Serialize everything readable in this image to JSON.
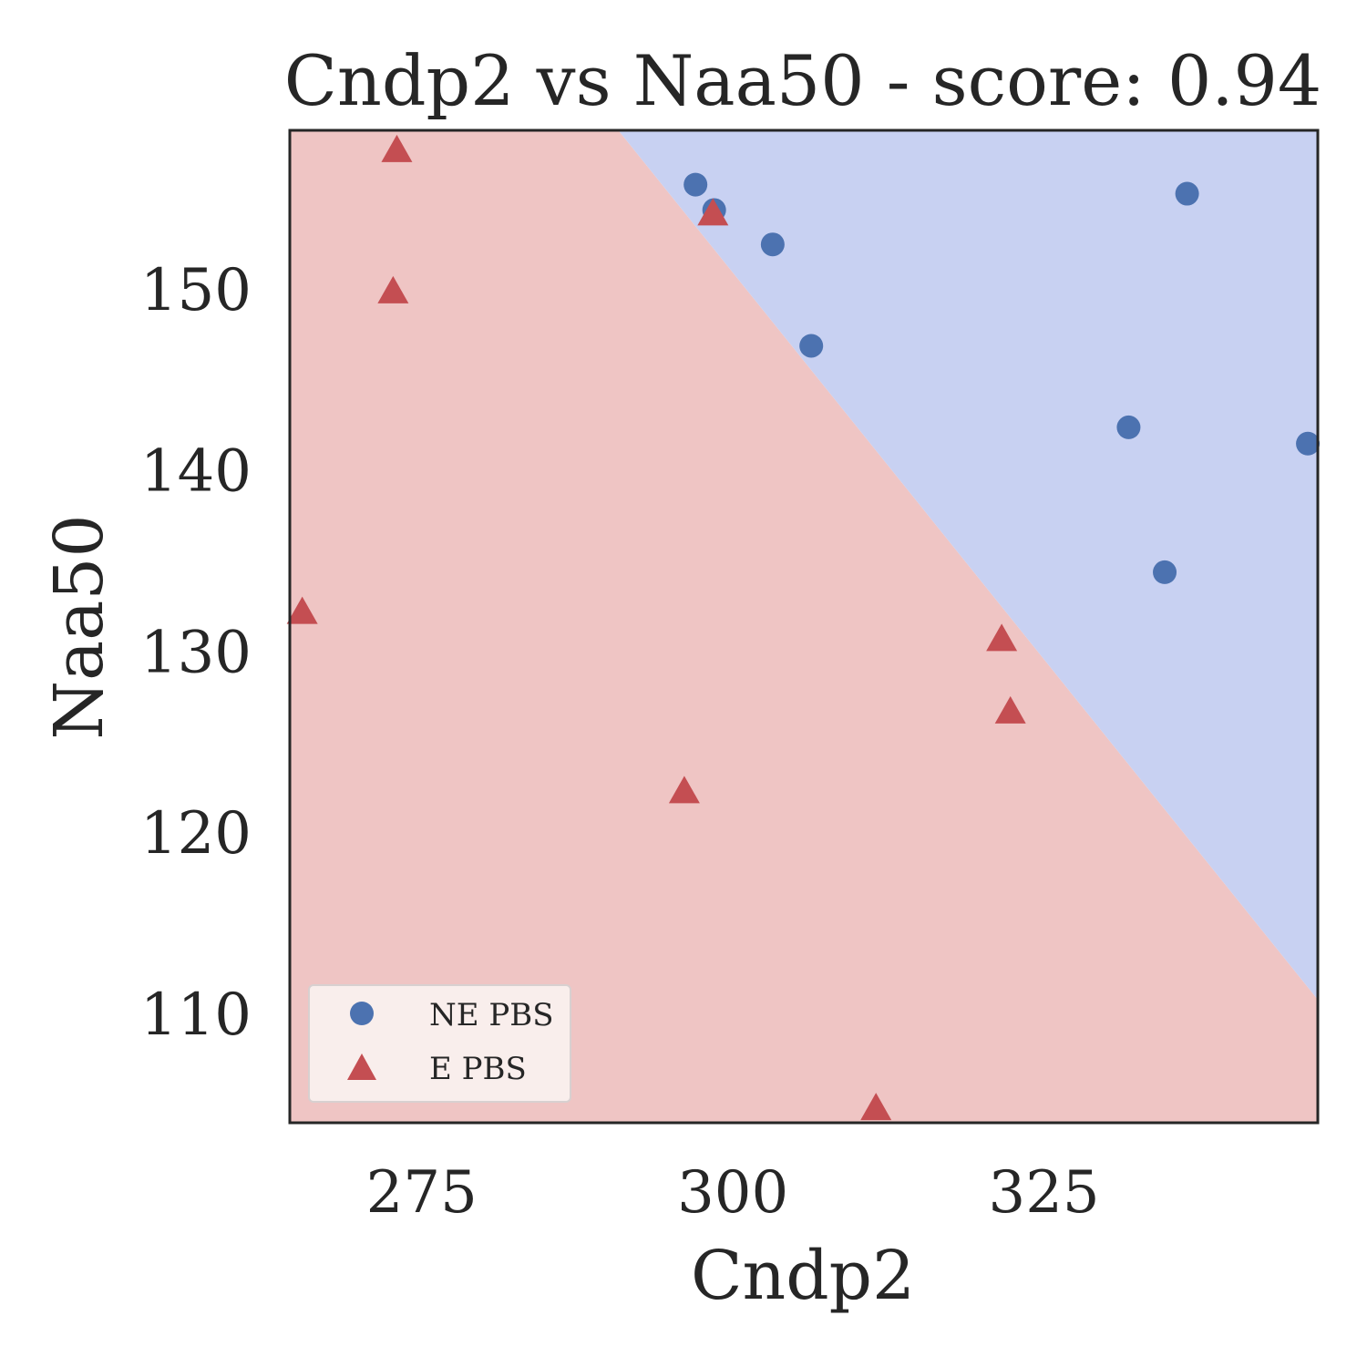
{
  "chart_data": {
    "type": "scatter",
    "title": "Cndp2 vs Naa50 - score: 0.94",
    "xlabel": "Cndp2",
    "ylabel": "Naa50",
    "xlim": [
      264.4,
      347.0
    ],
    "ylim": [
      104.0,
      158.8
    ],
    "xticks": [
      275,
      300,
      325
    ],
    "yticks": [
      110,
      120,
      130,
      140,
      150
    ],
    "grid": false,
    "legend_position": "lower-left",
    "decision_boundary": {
      "points": [
        [
          290.8,
          158.8
        ],
        [
          347.0,
          110.8
        ]
      ],
      "region_above_color": "#c8d1f2",
      "region_below_color": "#efc5c4"
    },
    "series": [
      {
        "name": "NE PBS",
        "marker": "circle",
        "color": "#4c72b0",
        "points": [
          [
            297.0,
            155.8
          ],
          [
            298.5,
            154.4
          ],
          [
            303.2,
            152.5
          ],
          [
            306.3,
            146.9
          ],
          [
            331.8,
            142.4
          ],
          [
            336.5,
            155.3
          ],
          [
            334.7,
            134.4
          ],
          [
            346.2,
            141.5
          ]
        ]
      },
      {
        "name": "E PBS",
        "marker": "triangle",
        "color": "#c44e52",
        "points": [
          [
            273.0,
            157.7
          ],
          [
            272.7,
            149.9
          ],
          [
            265.4,
            132.2
          ],
          [
            298.4,
            154.2
          ],
          [
            296.1,
            122.3
          ],
          [
            321.6,
            130.7
          ],
          [
            322.3,
            126.7
          ],
          [
            311.5,
            104.8
          ]
        ]
      }
    ]
  }
}
